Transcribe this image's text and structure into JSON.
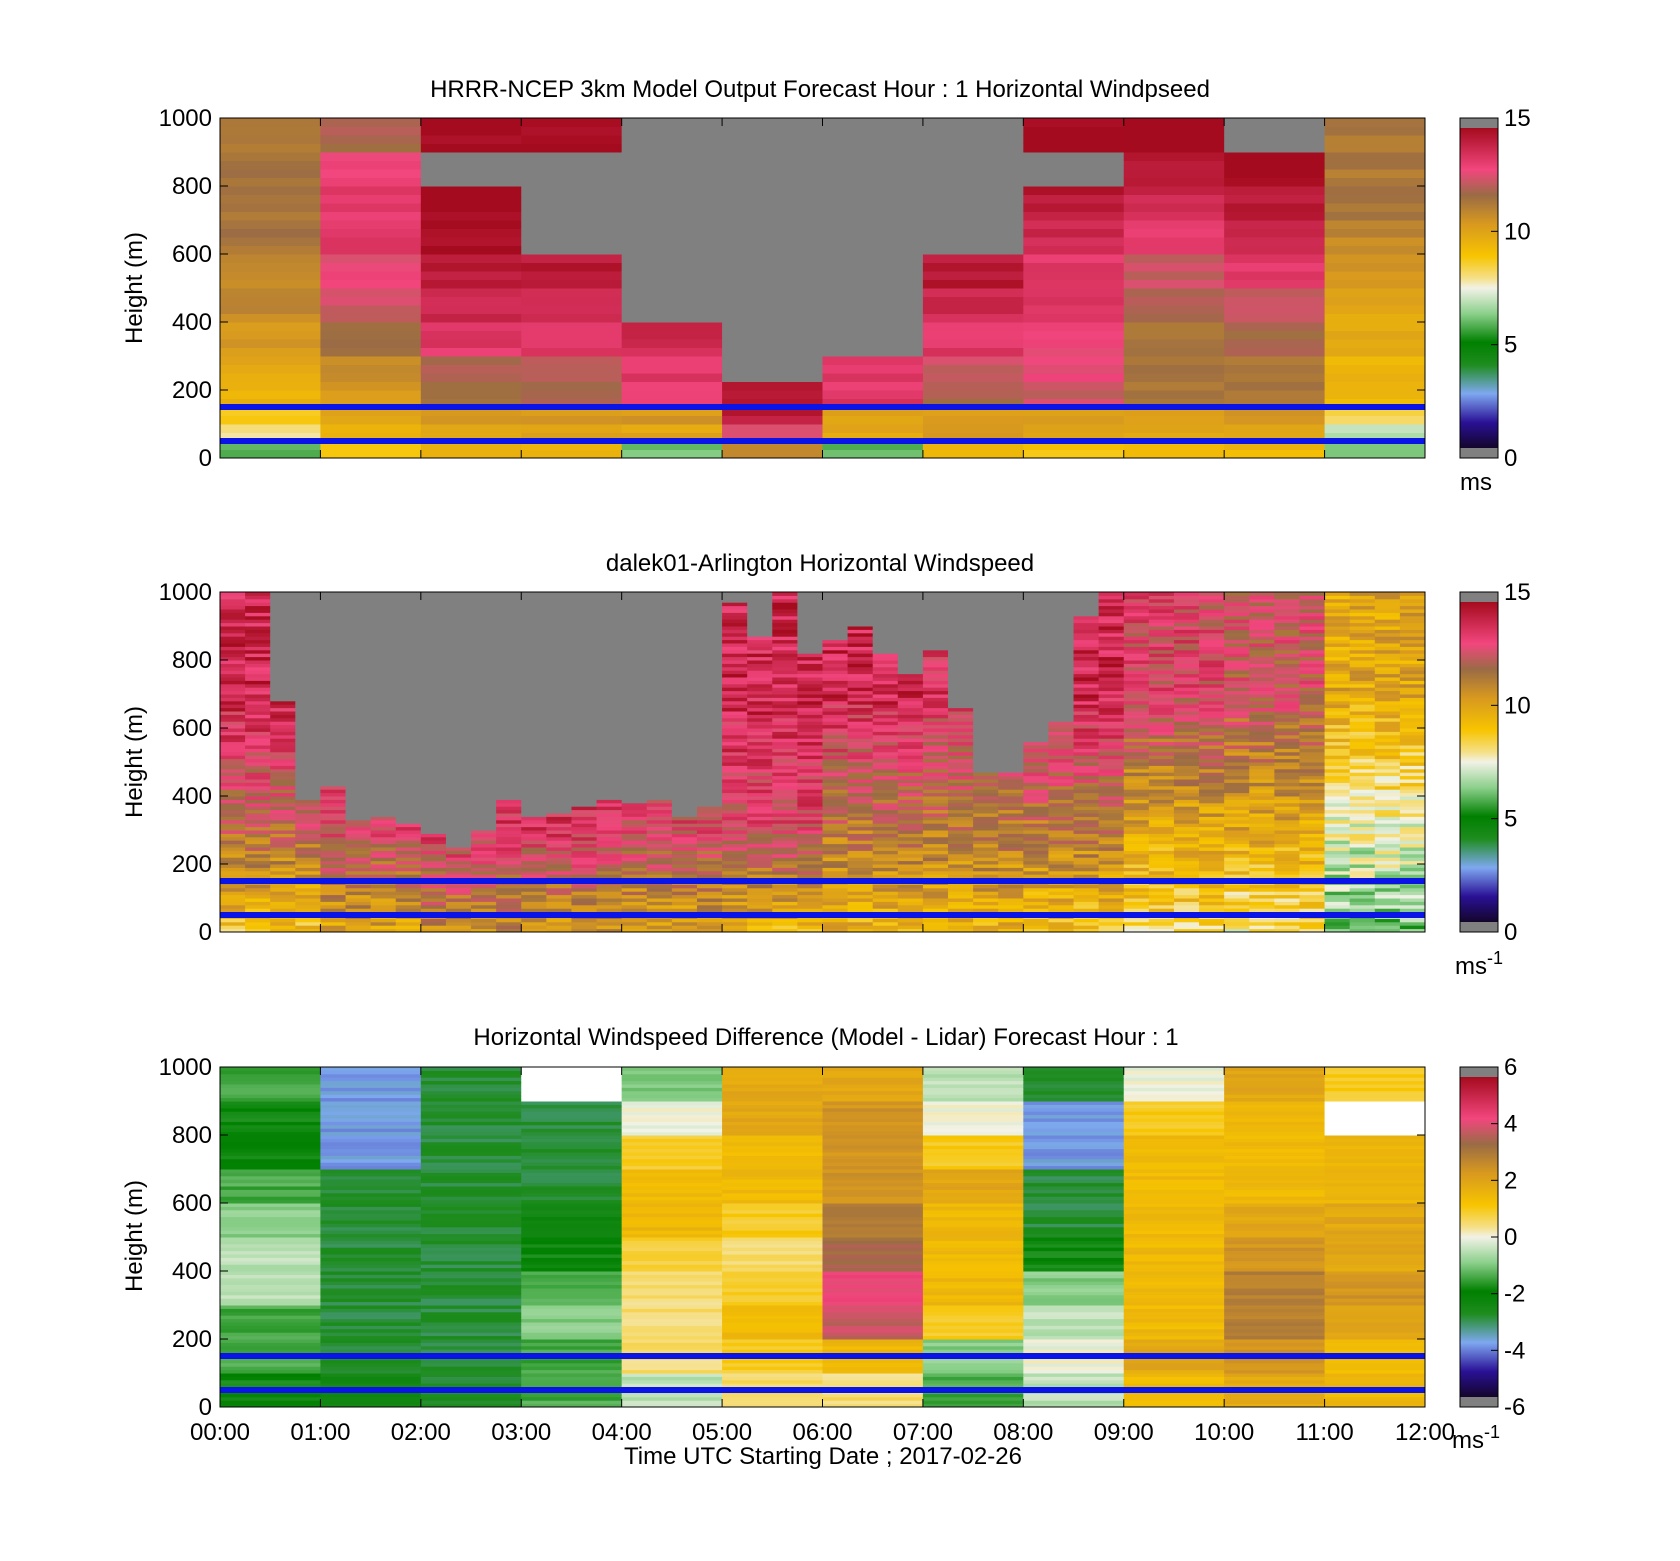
{
  "figure": {
    "x_ticks": [
      "00:00",
      "01:00",
      "02:00",
      "03:00",
      "04:00",
      "05:00",
      "06:00",
      "07:00",
      "08:00",
      "09:00",
      "10:00",
      "11:00",
      "12:00"
    ],
    "x_label": "Time UTC  Starting Date ; 2017-02-26"
  },
  "panels": [
    {
      "title": "HRRR-NCEP 3km Model Output   Forecast Hour : 1 Horizontal Windpseed",
      "ylabel": "Height (m)",
      "unit_label": "ms",
      "unit_sup": "",
      "cbar_ticks": [
        "15",
        "10",
        "5",
        "0"
      ]
    },
    {
      "title": "dalek01-Arlington  Horizontal Windspeed",
      "ylabel": "Height (m)",
      "unit_label": "ms",
      "unit_sup": "-1",
      "cbar_ticks": [
        "15",
        "10",
        "5",
        "0"
      ]
    },
    {
      "title": "Horizontal Windspeed Difference (Model - Lidar) Forecast Hour : 1",
      "ylabel": "Height (m)",
      "unit_label": "ms",
      "unit_sup": "-1",
      "cbar_ticks": [
        "6",
        "4",
        "2",
        "0",
        "-2",
        "-4",
        "-6"
      ]
    }
  ],
  "y_ticks": [
    "1000",
    "800",
    "600",
    "400",
    "200",
    "0"
  ],
  "chart_data": [
    {
      "type": "heatmap",
      "title": "HRRR-NCEP 3km Model Output   Forecast Hour : 1 Horizontal Windpseed",
      "xlabel": "Time UTC  Starting Date ; 2017-02-26",
      "ylabel": "Height (m)",
      "x": [
        "00:00",
        "01:00",
        "02:00",
        "03:00",
        "04:00",
        "05:00",
        "06:00",
        "07:00",
        "08:00",
        "09:00",
        "10:00",
        "11:00"
      ],
      "xlim": [
        "00:00",
        "12:00"
      ],
      "ylim": [
        0,
        1000
      ],
      "colorbar": {
        "label": "ms",
        "range": [
          0,
          15
        ]
      },
      "heights": [
        25,
        75,
        125,
        175,
        250,
        350,
        450,
        550,
        650,
        750,
        850,
        950
      ],
      "values": [
        [
          6,
          9,
          9.5,
          9.5,
          6,
          11,
          6,
          9.5,
          9,
          9.5,
          9.5,
          6
        ],
        [
          8,
          9.5,
          10,
          10,
          10,
          13,
          10,
          10.5,
          10,
          10,
          10,
          7
        ],
        [
          9,
          10,
          10.5,
          10.5,
          10.5,
          14.5,
          10,
          10.5,
          10.5,
          10.5,
          10.5,
          8.5
        ],
        [
          9.5,
          10.5,
          11.5,
          12,
          13,
          14.5,
          13.5,
          12,
          12.5,
          11.5,
          11.5,
          9.5
        ],
        [
          10,
          11,
          12,
          12.5,
          13.5,
          null,
          13.5,
          12.5,
          13,
          11.5,
          11.5,
          9.5
        ],
        [
          10.5,
          12,
          13.5,
          13.5,
          14,
          null,
          null,
          13.5,
          13,
          11.5,
          12,
          10
        ],
        [
          11,
          12.5,
          14,
          14,
          null,
          null,
          null,
          14,
          13.5,
          12,
          12.5,
          10
        ],
        [
          11,
          13,
          14.5,
          14.5,
          null,
          null,
          null,
          14.5,
          13.5,
          12.5,
          13.5,
          10.5
        ],
        [
          11.5,
          13.5,
          15,
          null,
          null,
          null,
          null,
          null,
          14,
          13.5,
          14,
          11
        ],
        [
          11.5,
          13.5,
          15,
          null,
          null,
          null,
          null,
          null,
          14.5,
          14,
          14.5,
          11.5
        ],
        [
          11.5,
          13,
          null,
          null,
          null,
          null,
          null,
          null,
          null,
          14.5,
          15,
          11.5
        ],
        [
          11.5,
          12,
          15,
          15,
          null,
          null,
          null,
          null,
          15,
          15,
          null,
          11.5
        ]
      ],
      "overlay_lines_height_m": [
        50,
        150
      ]
    },
    {
      "type": "heatmap",
      "title": "dalek01-Arlington  Horizontal Windspeed",
      "xlabel": "Time UTC  Starting Date ; 2017-02-26",
      "ylabel": "Height (m)",
      "xlim": [
        "00:00",
        "12:00"
      ],
      "ylim": [
        0,
        1000
      ],
      "colorbar": {
        "label": "ms-1",
        "range": [
          0,
          15
        ]
      },
      "observed_top_height_m": [
        1000,
        1000,
        680,
        390,
        430,
        330,
        340,
        320,
        290,
        250,
        300,
        390,
        340,
        350,
        370,
        390,
        380,
        390,
        340,
        370,
        970,
        870,
        1000,
        820,
        860,
        900,
        820,
        760,
        830,
        660,
        470,
        470,
        560,
        620,
        930,
        1000,
        1000,
        1000,
        1000,
        1000,
        1000,
        1000,
        1000,
        1000,
        1000,
        1000,
        1000,
        1000
      ],
      "typical_speed_by_hour": {
        "00:00": {
          "low": 9,
          "mid": 12,
          "high": 14
        },
        "01:00": {
          "low": 10,
          "mid": 13,
          "high": 14
        },
        "02:00": {
          "low": 11,
          "mid": 13.5,
          "high": null
        },
        "03:00": {
          "low": 10.5,
          "mid": 13.5,
          "high": null
        },
        "04:00": {
          "low": 10,
          "mid": 13,
          "high": null
        },
        "05:00": {
          "low": 9.5,
          "mid": 13,
          "high": 14
        },
        "06:00": {
          "low": 9.5,
          "mid": 11.5,
          "high": 14
        },
        "07:00": {
          "low": 9.5,
          "mid": 11.5,
          "high": 13.5
        },
        "08:00": {
          "low": 9,
          "mid": 11.5,
          "high": 14
        },
        "09:00": {
          "low": 8.5,
          "mid": 10,
          "high": 13
        },
        "10:00": {
          "low": 8,
          "mid": 10,
          "high": 12.5
        },
        "11:00": {
          "low": 6,
          "mid": 7.5,
          "high": 10
        }
      },
      "overlay_lines_height_m": [
        50,
        150
      ]
    },
    {
      "type": "heatmap",
      "title": "Horizontal Windspeed Difference (Model - Lidar) Forecast Hour : 1",
      "xlabel": "Time UTC  Starting Date ; 2017-02-26",
      "ylabel": "Height (m)",
      "x": [
        "00:00",
        "01:00",
        "02:00",
        "03:00",
        "04:00",
        "05:00",
        "06:00",
        "07:00",
        "08:00",
        "09:00",
        "10:00",
        "11:00"
      ],
      "xlim": [
        "00:00",
        "12:00"
      ],
      "ylim": [
        0,
        1000
      ],
      "colorbar": {
        "label": "ms-1",
        "range": [
          -6,
          6
        ]
      },
      "heights": [
        50,
        150,
        250,
        350,
        450,
        550,
        650,
        750,
        850,
        950
      ],
      "values": [
        [
          -2,
          -2.5,
          -3,
          -1.5,
          -0.5,
          0.5,
          0.5,
          -1.5,
          -0.5,
          1.5,
          2,
          1.5
        ],
        [
          -1.5,
          -3,
          -3,
          -1.5,
          0.5,
          1,
          1.5,
          -1,
          0,
          2,
          2.5,
          1.5
        ],
        [
          -1.5,
          -3,
          -3,
          -1,
          0.5,
          1.5,
          4,
          1,
          -0.5,
          1.5,
          3,
          2
        ],
        [
          -0.5,
          -3,
          -3,
          -1.5,
          0.5,
          1,
          4.5,
          1.5,
          -1,
          1.5,
          3,
          2.5
        ],
        [
          -0.5,
          -3,
          -3,
          -2,
          0.8,
          0.5,
          3.5,
          1.5,
          -2,
          1.5,
          2.5,
          2
        ],
        [
          -1,
          -3,
          -3,
          -2.5,
          1.5,
          1,
          3,
          1.5,
          -3,
          1.5,
          2,
          2
        ],
        [
          -1.5,
          -3,
          -3,
          -3,
          1.5,
          1.5,
          2.5,
          2,
          -3,
          1.5,
          1.5,
          1.5
        ],
        [
          -2,
          -4,
          -3,
          -3,
          1,
          1.5,
          2.5,
          1,
          -4,
          1.5,
          1.5,
          1.5
        ],
        [
          -2,
          -4,
          -3,
          -3,
          0,
          2,
          2.5,
          0,
          -4,
          1,
          1.5,
          null
        ],
        [
          -1.5,
          -4,
          -3,
          null,
          -1,
          2,
          2,
          -0.5,
          -3,
          0,
          2,
          1
        ]
      ],
      "overlay_lines_height_m": [
        50,
        150
      ]
    }
  ]
}
